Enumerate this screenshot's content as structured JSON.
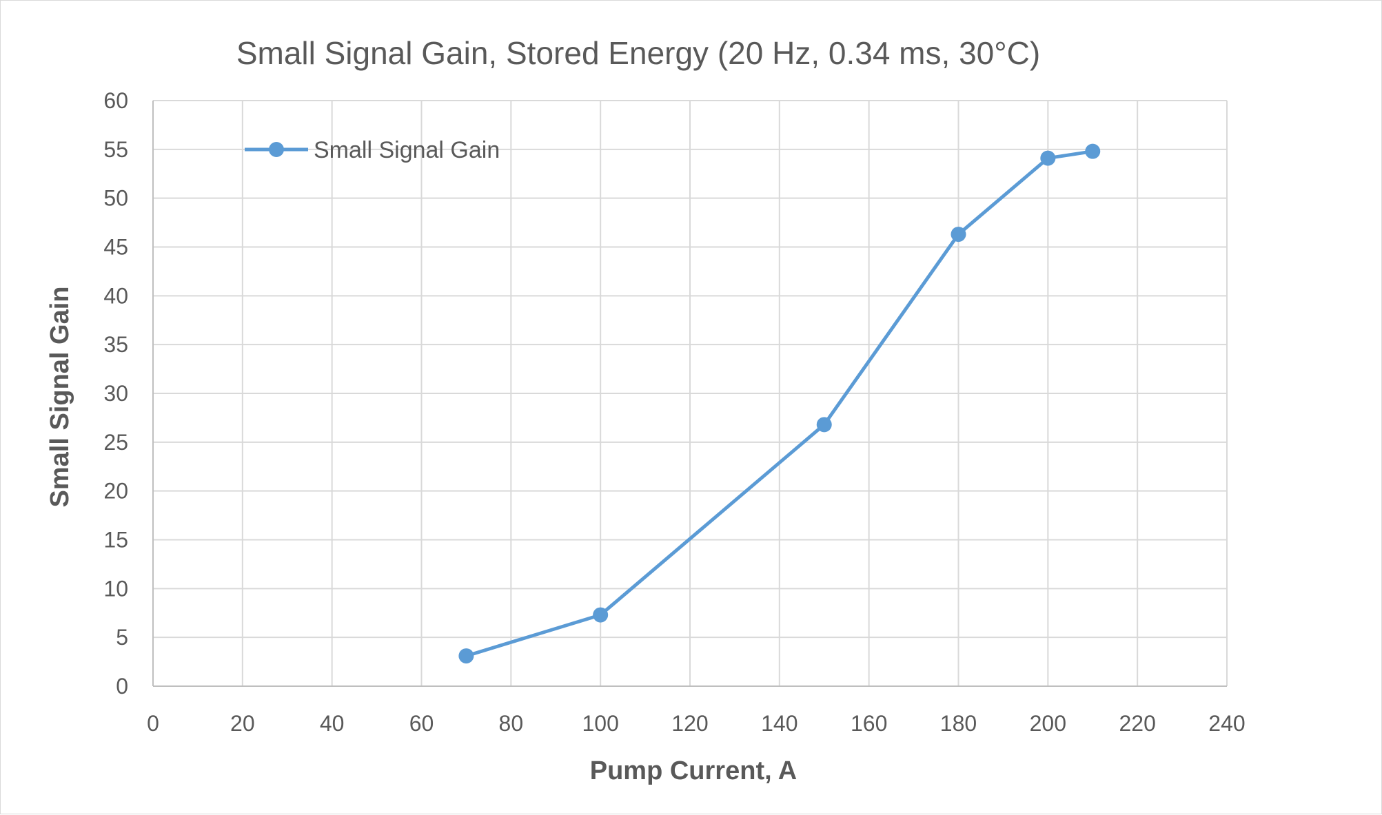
{
  "chart_data": {
    "type": "line",
    "title": "Small Signal Gain, Stored Energy (20 Hz, 0.34 ms, 30°C)",
    "xlabel": "Pump Current, A",
    "ylabel": "Small Signal Gain",
    "xlim": [
      0,
      240
    ],
    "ylim": [
      0,
      60
    ],
    "x_ticks": [
      0,
      20,
      40,
      60,
      80,
      100,
      120,
      140,
      160,
      180,
      200,
      220,
      240
    ],
    "y_ticks": [
      0,
      5,
      10,
      15,
      20,
      25,
      30,
      35,
      40,
      45,
      50,
      55,
      60
    ],
    "grid": true,
    "legend": "top-left",
    "series": [
      {
        "name": "Small Signal Gain",
        "color": "#5b9bd5",
        "marker": "circle",
        "x": [
          70,
          100,
          150,
          180,
          200,
          210
        ],
        "y": [
          3.1,
          7.3,
          26.8,
          46.3,
          54.1,
          54.8
        ]
      }
    ]
  }
}
